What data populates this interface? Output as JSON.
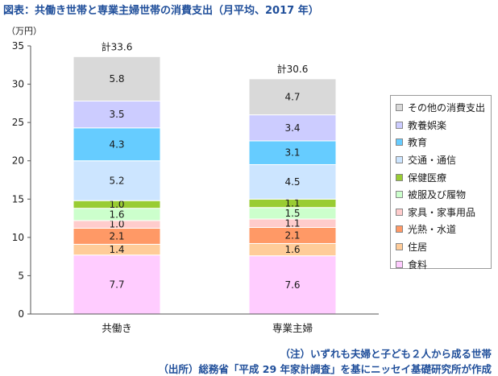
{
  "figure": {
    "title": "図表：共働き世帯と専業主婦世帯の消費支出（月平均、2017 年）",
    "unit_label": "（万円）",
    "notes": [
      "（注）いずれも夫婦と子ども２人から成る世帯",
      "（出所）総務省「平成 29 年家計調査」を基にニッセイ基礎研究所が作成"
    ]
  },
  "chart_data": {
    "type": "bar",
    "stacked": true,
    "categories": [
      "共働き",
      "専業主婦"
    ],
    "ylim": [
      0,
      35
    ],
    "yticks": [
      0,
      5,
      10,
      15,
      20,
      25,
      30,
      35
    ],
    "ylabel": "（万円）",
    "totals": [
      "計33.6",
      "計30.6"
    ],
    "legend_position": "right",
    "series": [
      {
        "name": "食料",
        "values": [
          7.7,
          7.6
        ],
        "color": "#ffccff"
      },
      {
        "name": "住居",
        "values": [
          1.4,
          1.6
        ],
        "color": "#ffcc99"
      },
      {
        "name": "光熱・水道",
        "values": [
          2.1,
          2.1
        ],
        "color": "#ff9966"
      },
      {
        "name": "家具・家事用品",
        "values": [
          1.0,
          1.1
        ],
        "color": "#ffcccc"
      },
      {
        "name": "被服及び履物",
        "values": [
          1.6,
          1.5
        ],
        "color": "#ccffcc"
      },
      {
        "name": "保健医療",
        "values": [
          1.0,
          1.1
        ],
        "color": "#99cc33"
      },
      {
        "name": "交通・通信",
        "values": [
          5.2,
          4.5
        ],
        "color": "#cce5ff"
      },
      {
        "name": "教育",
        "values": [
          4.3,
          3.1
        ],
        "color": "#66ccff"
      },
      {
        "name": "教養娯楽",
        "values": [
          3.5,
          3.4
        ],
        "color": "#ccccff"
      },
      {
        "name": "その他の消費支出",
        "values": [
          5.8,
          4.7
        ],
        "color": "#d9d9d9"
      }
    ]
  }
}
